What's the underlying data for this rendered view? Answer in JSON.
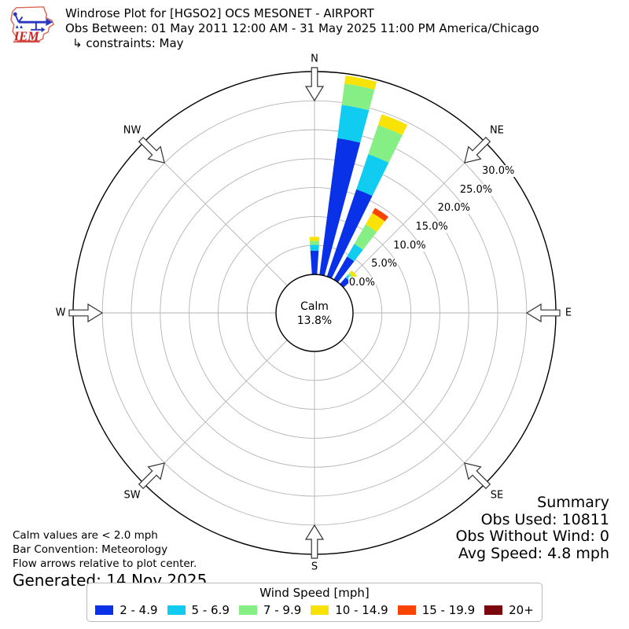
{
  "header": {
    "logo_text": "IEM",
    "title": "Windrose Plot for [HGSO2] OCS MESONET - AIRPORT",
    "subtitle": "Obs Between: 01 May 2011 12:00 AM - 31 May 2025 11:00 PM America/Chicago",
    "constraints": "↳ constraints: May"
  },
  "plot": {
    "calm_label": "Calm",
    "calm_value": "13.8%",
    "compass_labels": [
      "N",
      "NE",
      "E",
      "SE",
      "S",
      "SW",
      "W",
      "NW"
    ],
    "ring_labels": [
      "0.0%",
      "5.0%",
      "10.0%",
      "15.0%",
      "20.0%",
      "25.0%",
      "30.0%"
    ]
  },
  "summary": {
    "title": "Summary",
    "obs_used": "Obs Used: 10811",
    "obs_without_wind": "Obs Without Wind: 0",
    "avg_speed": "Avg Speed: 4.8 mph"
  },
  "notes": {
    "calm": "Calm values are < 2.0 mph",
    "convention": "Bar Convention: Meteorology",
    "arrows": "Flow arrows relative to plot center.",
    "generated": "Generated: 14 Nov 2025"
  },
  "legend": {
    "title": "Wind Speed [mph]",
    "items": [
      {
        "label": "2 - 4.9",
        "color": "#0831e8"
      },
      {
        "label": "5 - 6.9",
        "color": "#0fccf0"
      },
      {
        "label": "7 - 9.9",
        "color": "#85ef85"
      },
      {
        "label": "10 - 14.9",
        "color": "#f9e206"
      },
      {
        "label": "15 - 19.9",
        "color": "#f94406"
      },
      {
        "label": "20+",
        "color": "#7c060d"
      }
    ]
  },
  "chart_data": {
    "type": "windrose",
    "title": "Windrose Plot for [HGSO2] OCS MESONET - AIRPORT",
    "units": "mph",
    "calm_percent": 13.8,
    "avg_speed_mph": 4.8,
    "obs_used": 10811,
    "obs_without_wind": 0,
    "ring_percents": [
      0,
      5,
      10,
      15,
      20,
      25,
      30
    ],
    "radial_max_percent": 35,
    "speed_bins": [
      "2 - 4.9",
      "5 - 6.9",
      "7 - 9.9",
      "10 - 14.9",
      "15 - 19.9",
      "20+"
    ],
    "bin_colors": [
      "#0831e8",
      "#0fccf0",
      "#85ef85",
      "#f9e206",
      "#f94406",
      "#7c060d"
    ],
    "note": "frequency percent by direction and speed bin; all directions not listed are 0",
    "directions": [
      {
        "label": "N",
        "angle_deg": 0,
        "percents": [
          4.1,
          1.0,
          0.7,
          0.7,
          0,
          0
        ]
      },
      {
        "label": "NbE",
        "angle_deg": 11.25,
        "percents": [
          23.8,
          5.8,
          3.7,
          1.4,
          0,
          0
        ]
      },
      {
        "label": "NNE",
        "angle_deg": 22.5,
        "percents": [
          15.9,
          6.4,
          5.3,
          2.0,
          0,
          0
        ]
      },
      {
        "label": "NEbN",
        "angle_deg": 33.75,
        "percents": [
          4.6,
          2.5,
          3.9,
          2.3,
          1.0,
          0
        ]
      },
      {
        "label": "NE",
        "angle_deg": 45,
        "percents": [
          1.5,
          0.6,
          0.4,
          0.6,
          0,
          0
        ]
      }
    ]
  }
}
